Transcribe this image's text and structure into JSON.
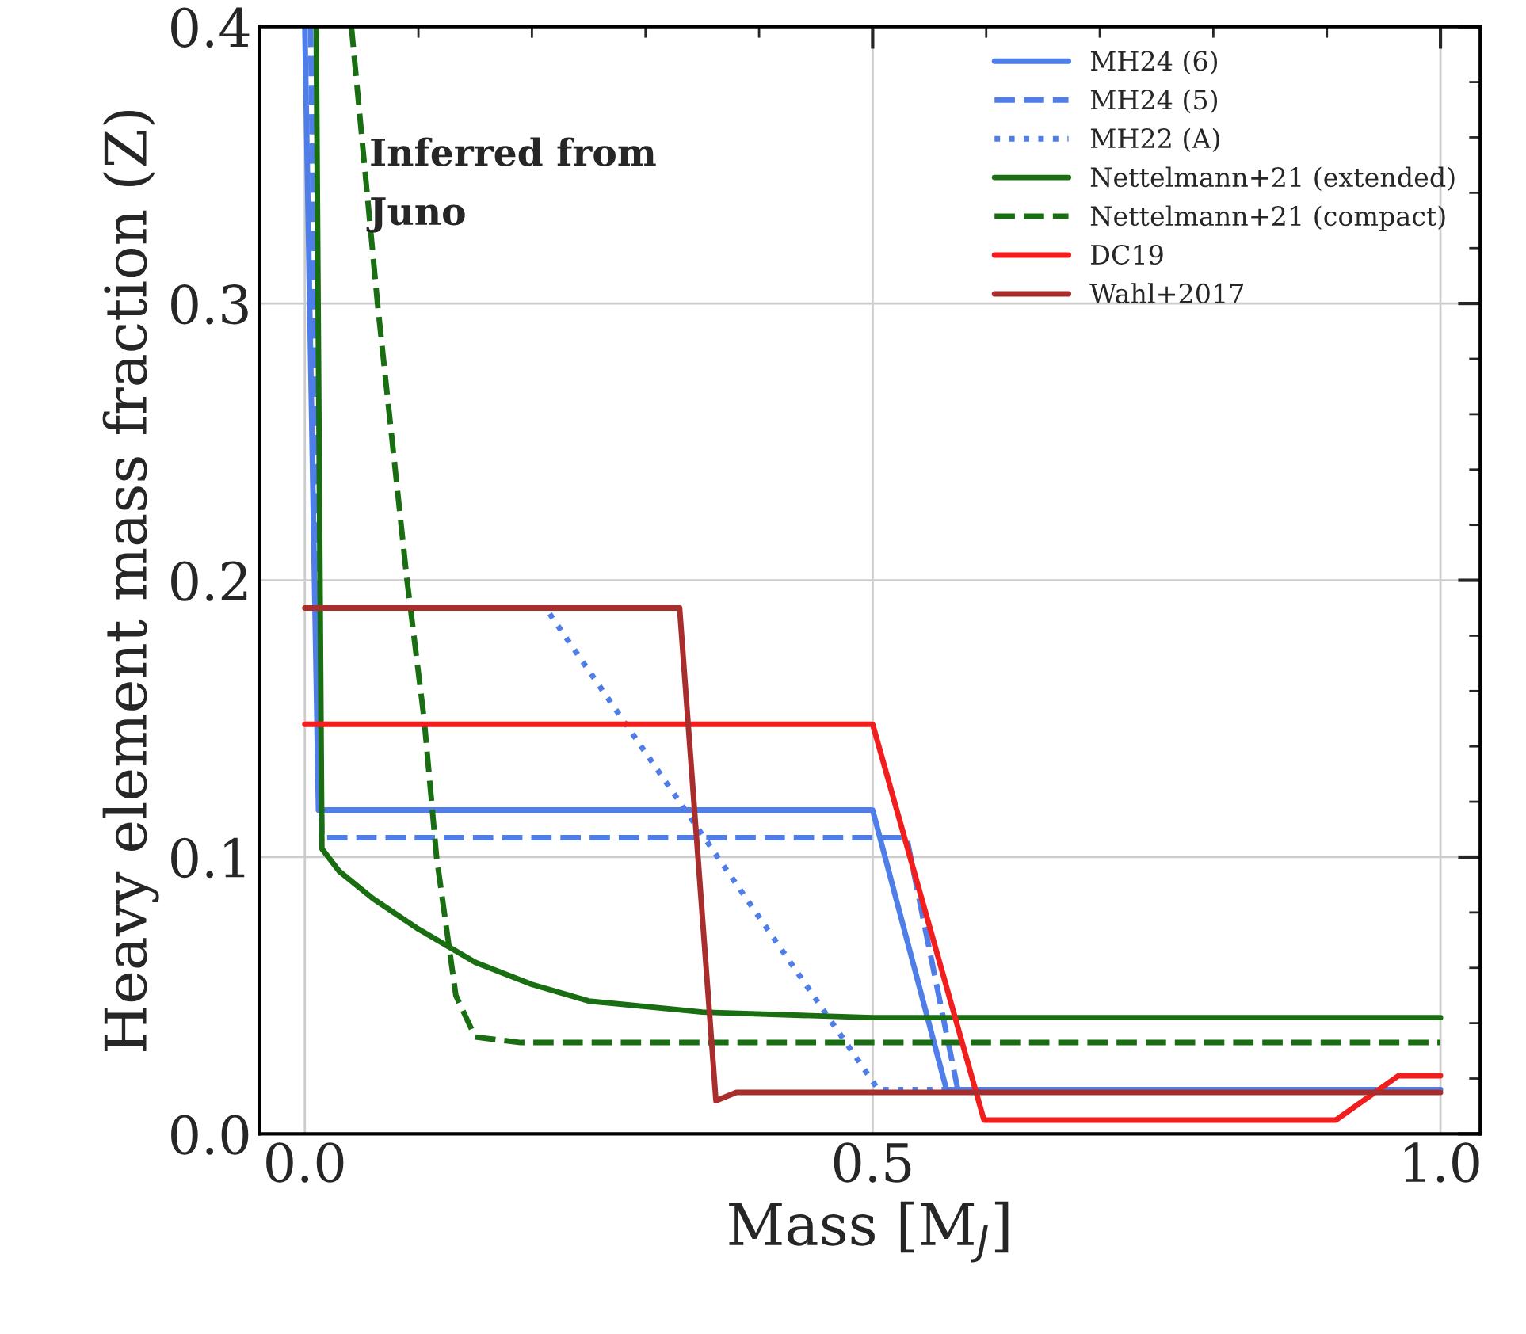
{
  "chart_data": {
    "type": "line",
    "xlabel": "Mass [M$_{J}$]",
    "ylabel": "Heavy element mass fraction (Z)",
    "annotations": [
      "Inferred from\nJuno"
    ],
    "xlim": [
      -0.04,
      1.035
    ],
    "ylim": [
      0,
      0.4
    ],
    "xticks": [
      {
        "value": 0,
        "label": "0.0"
      },
      0.5,
      {
        "value": 1,
        "label": "1.0"
      }
    ],
    "yticks": [
      {
        "value": 0,
        "label": "0.0"
      },
      0.1,
      0.2,
      0.3,
      0.4
    ],
    "grid": true,
    "legend": "top right",
    "series": [
      {
        "name": "MH24 (6)",
        "color": "#4f7ee8",
        "line_style": "solid",
        "x": [
          0.0,
          0.012,
          0.5,
          0.565,
          1.0
        ],
        "values": [
          0.4,
          0.117,
          0.117,
          0.016,
          0.016
        ]
      },
      {
        "name": "MH24 (5)",
        "color": "#4f7ee8",
        "line_style": "dashed",
        "x": [
          0.005,
          0.015,
          0.53,
          0.575,
          1.0
        ],
        "values": [
          0.4,
          0.107,
          0.107,
          0.016,
          0.016
        ]
      },
      {
        "name": "MH22 (A)",
        "color": "#4f7ee8",
        "line_style": "dotted",
        "x": [
          0.0,
          0.212,
          0.505,
          1.0
        ],
        "values": [
          0.19,
          0.19,
          0.016,
          0.016
        ]
      },
      {
        "name": "Nettelmann+21 (extended)",
        "color": "#1a6e12",
        "line_style": "solid",
        "x": [
          0.01,
          0.015,
          0.03,
          0.06,
          0.1,
          0.15,
          0.2,
          0.25,
          0.35,
          0.5,
          1.0
        ],
        "values": [
          0.4,
          0.103,
          0.095,
          0.085,
          0.074,
          0.062,
          0.054,
          0.048,
          0.044,
          0.042,
          0.042
        ]
      },
      {
        "name": "Nettelmann+21 (compact)",
        "color": "#1a6e12",
        "line_style": "dashed",
        "x": [
          0.041,
          0.064,
          0.09,
          0.105,
          0.116,
          0.133,
          0.15,
          0.19,
          1.0
        ],
        "values": [
          0.4,
          0.3,
          0.2,
          0.15,
          0.1,
          0.05,
          0.035,
          0.033,
          0.033
        ]
      },
      {
        "name": "DC19",
        "color": "#f21d1d",
        "line_style": "solid",
        "x": [
          0.0,
          0.5,
          0.598,
          0.908,
          0.963,
          1.0
        ],
        "values": [
          0.148,
          0.148,
          0.005,
          0.005,
          0.021,
          0.021
        ]
      },
      {
        "name": "Wahl+2017",
        "color": "#a82e2e",
        "line_style": "solid",
        "x": [
          0.0,
          0.33,
          0.362,
          0.38,
          1.0
        ],
        "values": [
          0.19,
          0.19,
          0.012,
          0.015,
          0.015
        ]
      }
    ]
  }
}
